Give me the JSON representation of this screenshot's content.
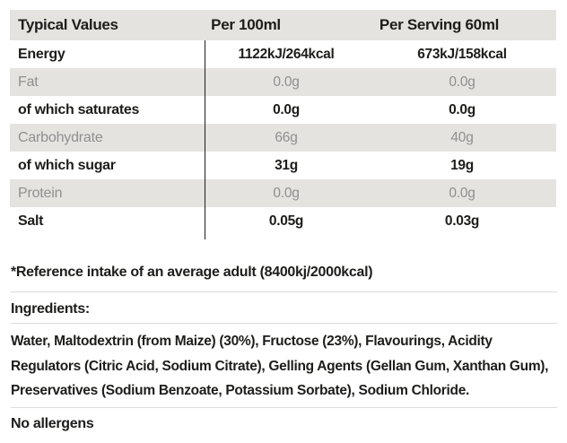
{
  "table": {
    "header": {
      "col_label": "Typical Values",
      "col_per_100ml": "Per 100ml",
      "col_per_serving": "Per Serving 60ml"
    },
    "rows": [
      {
        "label": "Energy",
        "per_100ml": "1122kJ/264kcal",
        "per_serving": "673kJ/158kcal"
      },
      {
        "label": "Fat",
        "per_100ml": "0.0g",
        "per_serving": "0.0g"
      },
      {
        "label": "of which saturates",
        "per_100ml": "0.0g",
        "per_serving": "0.0g"
      },
      {
        "label": "Carbohydrate",
        "per_100ml": "66g",
        "per_serving": "40g"
      },
      {
        "label": "of which sugar",
        "per_100ml": "31g",
        "per_serving": "19g"
      },
      {
        "label": "Protein",
        "per_100ml": "0.0g",
        "per_serving": "0.0g"
      },
      {
        "label": "Salt",
        "per_100ml": "0.05g",
        "per_serving": "0.03g"
      }
    ]
  },
  "footnote": "*Reference intake of an average adult (8400kj/2000kcal)",
  "ingredients": {
    "heading": "Ingredients:",
    "text": "Water, Maltodextrin (from Maize) (30%), Fructose (23%), Flavourings, Acidity Regulators (Citric Acid, Sodium Citrate), Gelling Agents (Gellan Gum, Xanthan Gum), Preservatives (Sodium Benzoate, Potassium Sorbate), Sodium Chloride."
  },
  "allergens": "No allergens",
  "colors": {
    "row_shade": "#e5e3e0",
    "text_strong": "#1d1d1b",
    "text_muted": "#8f8f8f",
    "divider_line": "#dddbd8",
    "column_rule": "#1d1d1b"
  }
}
